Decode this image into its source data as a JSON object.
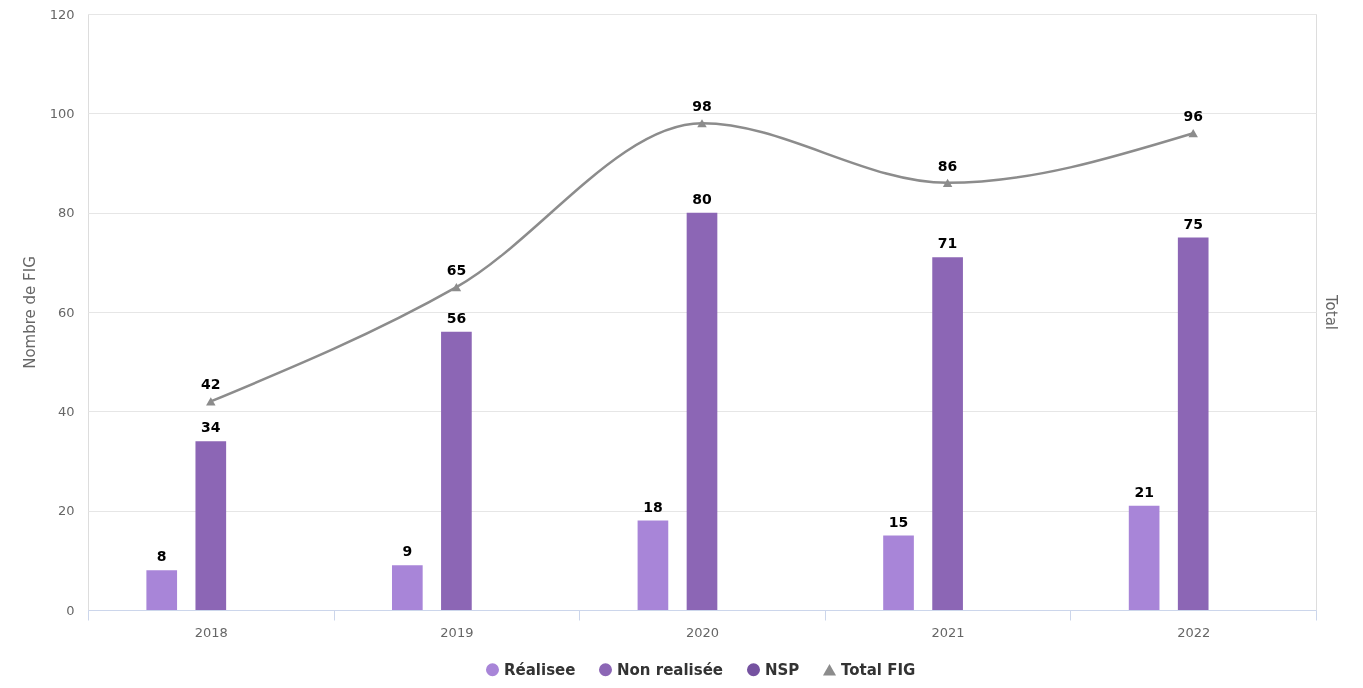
{
  "chart_data": {
    "type": "bar",
    "categories": [
      "2018",
      "2019",
      "2020",
      "2021",
      "2022"
    ],
    "ylabel": "Nombre de FIG",
    "y2label": "Total",
    "ylim": [
      0,
      120
    ],
    "yticks": [
      0,
      20,
      40,
      60,
      80,
      100,
      120
    ],
    "y2lim": [
      0,
      120
    ],
    "tick_labels": "xy",
    "grid": "y",
    "legend": "bottom",
    "data_labels": true,
    "series": [
      {
        "name": "Réalisee",
        "color": "#a885d8",
        "values": [
          8,
          9,
          18,
          15,
          21
        ]
      },
      {
        "name": "Non realisée",
        "color": "#8c66b5",
        "values": [
          34,
          56,
          80,
          71,
          75
        ]
      },
      {
        "name": "NSP",
        "color": "#7552a0",
        "values": [
          null,
          null,
          null,
          null,
          null
        ]
      },
      {
        "name": "Total FIG",
        "type": "line",
        "axis": "y2",
        "color": "#8c8c8c",
        "marker": "triangle",
        "values": [
          42,
          65,
          98,
          86,
          96
        ]
      }
    ]
  }
}
